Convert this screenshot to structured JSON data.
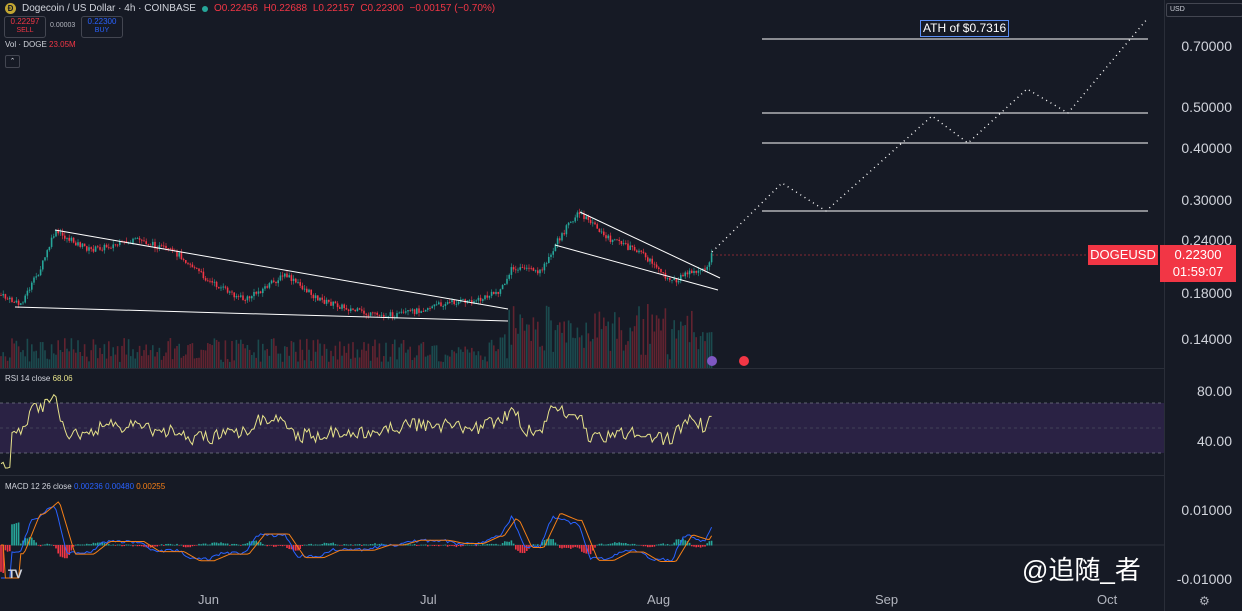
{
  "header": {
    "symbol": "Dogecoin / US Dollar · 4h · COINBASE",
    "open": "O0.22456",
    "high": "H0.22688",
    "low": "L0.22157",
    "close": "C0.22300",
    "change": "−0.00157 (−0.70%)"
  },
  "trade": {
    "sell_price": "0.22297",
    "sell_label": "SELL",
    "spread": "0.00003",
    "buy_price": "0.22300",
    "buy_label": "BUY"
  },
  "volume": {
    "label": "Vol · DOGE",
    "value": "23.05M"
  },
  "currency_selector": "USD",
  "price_axis": [
    "0.70000",
    "0.50000",
    "0.40000",
    "0.30000",
    "0.24000",
    "0.18000",
    "0.14000"
  ],
  "current_price_tag": {
    "symbol": "DOGEUSD",
    "price": "0.22300",
    "countdown": "01:59:07"
  },
  "annotation": "ATH of $0.7316",
  "rsi": {
    "label": "RSI 14 close",
    "value": "68.06",
    "axis": [
      "80.00",
      "40.00"
    ]
  },
  "macd": {
    "label": "MACD 12 26 close",
    "v1": "0.00236",
    "v2": "0.00480",
    "v3": "0.00255",
    "axis": [
      "0.01000",
      "-0.01000"
    ]
  },
  "time_axis": [
    "Jun",
    "Jul",
    "Aug",
    "Sep",
    "Oct"
  ],
  "watermark": "@追随_者",
  "colors": {
    "background": "#161a25",
    "up": "#26a69a",
    "down": "#f23645",
    "rsi": "#e6e28a",
    "macd": "#2962ff",
    "signal": "#f57f17",
    "rsi_band": "#2a2244"
  },
  "icons": [
    "tradingview-logo-icon",
    "settings-icon",
    "chevron-up-icon",
    "coin-icon"
  ]
}
